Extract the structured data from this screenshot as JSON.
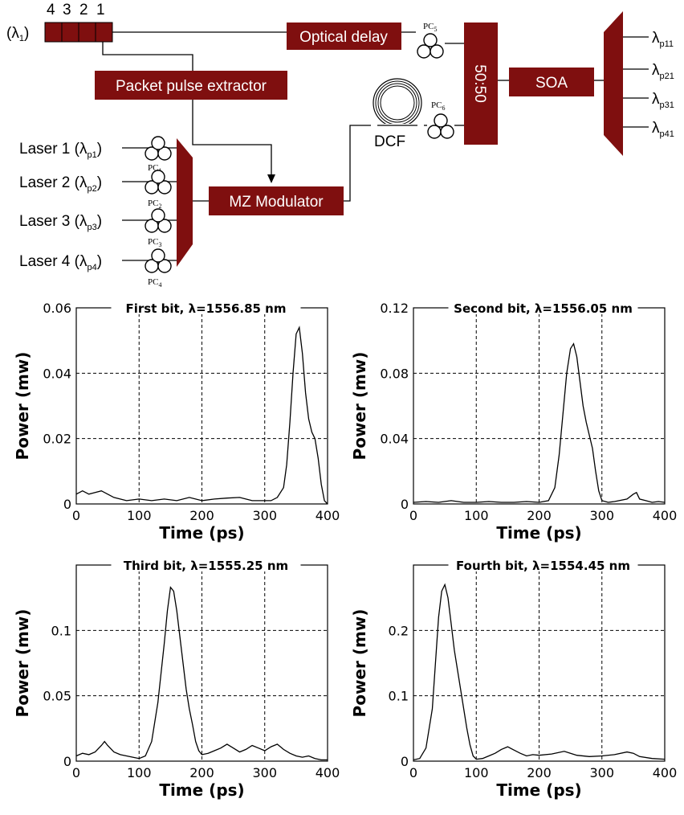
{
  "diagram": {
    "input_label": "(λ1)",
    "input_label_main": "(λ",
    "input_label_sub": "1",
    "input_label_end": ")",
    "slot_numbers": [
      "4",
      "3",
      "2",
      "1"
    ],
    "optical_delay": "Optical delay",
    "packet_pulse_extractor": "Packet pulse extractor",
    "mz_modulator": "MZ Modulator",
    "coupler": "50:50",
    "soa": "SOA",
    "dcf": "DCF",
    "pc5": {
      "main": "PC",
      "sub": "5"
    },
    "pc6": {
      "main": "PC",
      "sub": "6"
    },
    "lasers": [
      {
        "main": "Laser 1 (λ",
        "sub": "p1",
        "end": ")",
        "pc_main": "PC",
        "pc_sub": "1"
      },
      {
        "main": "Laser 2 (λ",
        "sub": "p2",
        "end": ")",
        "pc_main": "PC",
        "pc_sub": "2"
      },
      {
        "main": "Laser 3 (λ",
        "sub": "p3",
        "end": ")",
        "pc_main": "PC",
        "pc_sub": "3"
      },
      {
        "main": "Laser 4 (λ",
        "sub": "p4",
        "end": ")",
        "pc_main": "PC",
        "pc_sub": "4"
      }
    ],
    "outputs": [
      {
        "main": "λ",
        "sub": "p11"
      },
      {
        "main": "λ",
        "sub": "p21"
      },
      {
        "main": "λ",
        "sub": "p31"
      },
      {
        "main": "λ",
        "sub": "p41"
      }
    ],
    "colors": {
      "box": "#7f0f0f",
      "box_text": "#ffffff"
    }
  },
  "chart_data": [
    {
      "type": "line",
      "title": "First bit, λ=1556.85 nm",
      "xlabel": "Time (ps)",
      "ylabel": "Power (mw)",
      "xlim": [
        0,
        400
      ],
      "ylim": [
        0,
        0.06
      ],
      "xticks": [
        "0",
        "100",
        "200",
        "300",
        "400"
      ],
      "yticks": [
        "0",
        "0.02",
        "0.04",
        "0.06"
      ],
      "grid": true,
      "series": [
        {
          "x": [
            0,
            10,
            20,
            30,
            40,
            50,
            60,
            80,
            100,
            120,
            140,
            160,
            180,
            200,
            220,
            240,
            260,
            280,
            300,
            310,
            320,
            330,
            335,
            340,
            345,
            350,
            355,
            360,
            365,
            370,
            375,
            380,
            385,
            390,
            395,
            400
          ],
          "y": [
            0.003,
            0.004,
            0.003,
            0.0035,
            0.004,
            0.003,
            0.002,
            0.001,
            0.0015,
            0.001,
            0.0015,
            0.001,
            0.002,
            0.001,
            0.0015,
            0.0018,
            0.002,
            0.001,
            0.001,
            0.001,
            0.002,
            0.005,
            0.012,
            0.025,
            0.04,
            0.052,
            0.054,
            0.046,
            0.034,
            0.026,
            0.022,
            0.02,
            0.014,
            0.006,
            0.001,
            0.0
          ]
        }
      ]
    },
    {
      "type": "line",
      "title": "Second bit, λ=1556.05 nm",
      "xlabel": "Time (ps)",
      "ylabel": "Power (mw)",
      "xlim": [
        0,
        400
      ],
      "ylim": [
        0,
        0.12
      ],
      "xticks": [
        "0",
        "100",
        "200",
        "300",
        "400"
      ],
      "yticks": [
        "0",
        "0.04",
        "0.08",
        "0.12"
      ],
      "grid": true,
      "series": [
        {
          "x": [
            0,
            20,
            40,
            60,
            80,
            100,
            120,
            140,
            160,
            180,
            200,
            215,
            225,
            232,
            238,
            244,
            250,
            255,
            260,
            265,
            270,
            275,
            280,
            285,
            290,
            295,
            300,
            310,
            320,
            340,
            350,
            355,
            360,
            370,
            380,
            390,
            400
          ],
          "y": [
            0.001,
            0.0015,
            0.001,
            0.002,
            0.001,
            0.001,
            0.0015,
            0.001,
            0.001,
            0.0015,
            0.001,
            0.002,
            0.01,
            0.03,
            0.055,
            0.08,
            0.095,
            0.098,
            0.09,
            0.075,
            0.06,
            0.05,
            0.042,
            0.034,
            0.02,
            0.008,
            0.002,
            0.001,
            0.0015,
            0.003,
            0.006,
            0.007,
            0.003,
            0.002,
            0.001,
            0.0015,
            0.001
          ]
        }
      ]
    },
    {
      "type": "line",
      "title": "Third bit, λ=1555.25 nm",
      "xlabel": "Time (ps)",
      "ylabel": "Power (mw)",
      "xlim": [
        0,
        400
      ],
      "ylim": [
        0,
        0.15
      ],
      "xticks": [
        "0",
        "100",
        "200",
        "300",
        "400"
      ],
      "yticks": [
        "0",
        "0.05",
        "0.1"
      ],
      "grid": true,
      "series": [
        {
          "x": [
            0,
            10,
            20,
            30,
            40,
            45,
            50,
            60,
            70,
            80,
            90,
            100,
            110,
            120,
            130,
            140,
            145,
            150,
            155,
            160,
            165,
            170,
            175,
            180,
            185,
            190,
            195,
            200,
            210,
            220,
            230,
            240,
            250,
            260,
            270,
            280,
            290,
            300,
            310,
            320,
            330,
            340,
            350,
            360,
            370,
            380,
            390,
            400
          ],
          "y": [
            0.004,
            0.006,
            0.005,
            0.007,
            0.012,
            0.015,
            0.012,
            0.007,
            0.005,
            0.004,
            0.003,
            0.002,
            0.004,
            0.015,
            0.045,
            0.09,
            0.115,
            0.133,
            0.13,
            0.115,
            0.095,
            0.075,
            0.055,
            0.04,
            0.028,
            0.015,
            0.008,
            0.005,
            0.006,
            0.008,
            0.01,
            0.013,
            0.01,
            0.007,
            0.009,
            0.012,
            0.01,
            0.008,
            0.011,
            0.013,
            0.009,
            0.006,
            0.004,
            0.003,
            0.004,
            0.002,
            0.001,
            0.001
          ]
        }
      ]
    },
    {
      "type": "line",
      "title": "Fourth bit, λ=1554.45 nm",
      "xlabel": "Time (ps)",
      "ylabel": "Power (mw)",
      "xlim": [
        0,
        400
      ],
      "ylim": [
        0,
        0.3
      ],
      "xticks": [
        "0",
        "100",
        "200",
        "300",
        "400"
      ],
      "yticks": [
        "0",
        "0.1",
        "0.2"
      ],
      "grid": true,
      "series": [
        {
          "x": [
            0,
            10,
            20,
            30,
            35,
            40,
            45,
            50,
            55,
            60,
            65,
            70,
            75,
            80,
            85,
            90,
            95,
            100,
            110,
            120,
            130,
            140,
            150,
            160,
            170,
            180,
            190,
            200,
            220,
            240,
            250,
            260,
            280,
            300,
            320,
            340,
            350,
            360,
            380,
            400
          ],
          "y": [
            0.002,
            0.004,
            0.02,
            0.08,
            0.15,
            0.22,
            0.26,
            0.27,
            0.25,
            0.21,
            0.17,
            0.14,
            0.11,
            0.08,
            0.05,
            0.025,
            0.008,
            0.003,
            0.004,
            0.008,
            0.012,
            0.018,
            0.022,
            0.017,
            0.012,
            0.008,
            0.01,
            0.009,
            0.011,
            0.015,
            0.012,
            0.009,
            0.007,
            0.008,
            0.01,
            0.014,
            0.012,
            0.007,
            0.004,
            0.003
          ]
        }
      ]
    }
  ]
}
